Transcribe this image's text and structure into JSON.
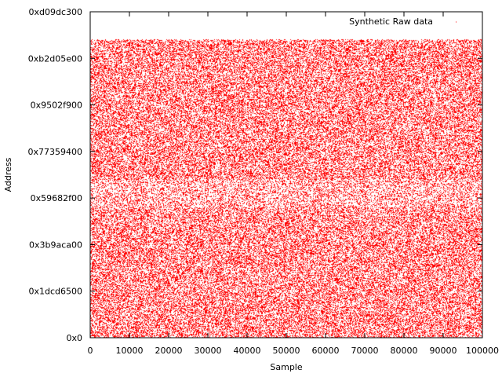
{
  "chart_data": {
    "type": "scatter",
    "title": "",
    "xlabel": "Sample",
    "ylabel": "Address",
    "xlim": [
      0,
      100000
    ],
    "ylim": [
      0,
      3500000000
    ],
    "x_ticks": [
      0,
      10000,
      20000,
      30000,
      40000,
      50000,
      60000,
      70000,
      80000,
      90000,
      100000
    ],
    "x_tick_labels": [
      "0",
      "10000",
      "20000",
      "30000",
      "40000",
      "50000",
      "60000",
      "70000",
      "80000",
      "90000",
      "100000"
    ],
    "y_ticks": [
      0,
      500000000,
      1000000000,
      1500000000,
      2000000000,
      2500000000,
      3000000000,
      3500000000
    ],
    "y_tick_labels": [
      "0x0",
      "0x1dcd6500",
      "0x3b9aca00",
      "0x59682f00",
      "0x77359400",
      "0x9502f900",
      "0xb2d05e00",
      "0xd09dc300"
    ],
    "grid": false,
    "legend_position": "top-right",
    "series": [
      {
        "name": "Synthetic Raw data",
        "color": "#ff0000",
        "marker": "dot",
        "description_values": {
          "x_range": [
            0,
            100000
          ],
          "y_range": [
            0,
            3200000000
          ],
          "n_points_estimate": 100000
        }
      }
    ]
  }
}
